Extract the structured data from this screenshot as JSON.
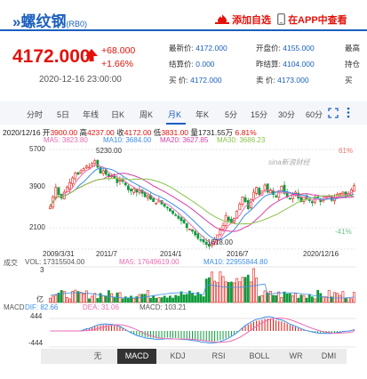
{
  "header": {
    "title": "»螺纹钢",
    "code": "(RB0)",
    "add_watchlist": "添加自选",
    "view_in_app": "在APP中查看"
  },
  "quote": {
    "price": "4172.000",
    "change": "+68.000",
    "change_pct": "+1.66%",
    "datetime": "2020-12-16 23:00:00",
    "latest_label": "最新价:",
    "latest_value": "4172.000",
    "open_label": "开盘价:",
    "open_value": "4155.000",
    "high_label": "最高",
    "settle_label": "结算价:",
    "settle_value": "0.000",
    "prev_settle_label": "昨结算:",
    "prev_settle_value": "4104.000",
    "hold_label": "持仓",
    "buy_label": "买  价:",
    "buy_value": "4172.000",
    "sell_label": "卖  价:",
    "sell_value": "4173.000",
    "extra_label": "买"
  },
  "tabs": [
    "分时",
    "5日",
    "年线",
    "日K",
    "周K",
    "月K",
    "年K",
    "5分",
    "15分",
    "30分",
    "60分"
  ],
  "active_tab": "月K",
  "chart_info": {
    "date": "2020/12/16",
    "open_label": "开",
    "open": "3900.00",
    "high_label": "高",
    "high": "4237.00",
    "close_label": "收",
    "close": "4172.00",
    "low_label": "低",
    "low": "3831.00",
    "vol_label": "量",
    "vol": "1731.55万",
    "pct": "6.81%",
    "ma5": "MA5: 3823.80",
    "ma10": "MA10: 3684.00",
    "ma20": "MA20: 3627.85",
    "ma30": "MA30: 3686.23"
  },
  "price_axis": {
    "top": "5700",
    "mid": "3900",
    "bottom": "2100",
    "right_top": "61%",
    "right_bottom": "-41%",
    "peak_label": "5230.00",
    "trough_label": "1618.00"
  },
  "date_axis": [
    "2009/3/31",
    "2011/7",
    "2014/1",
    "2016/7",
    "2020/12/16"
  ],
  "watermark": "sina新浪财经",
  "volume": {
    "label": "成交",
    "vol_text": "VOL: 17315504.00",
    "ma5_text": "MA5: 17649619.00",
    "ma10_text": "MA10: 22955844.80",
    "axis_mid": "3",
    "axis_unit": "亿"
  },
  "macd": {
    "label": "MACD",
    "dif": "DIF: 82.66",
    "dea": "DEA: 31.06",
    "macd": "MACD: 103.21",
    "top": "444",
    "bottom": "-444"
  },
  "indicator_buttons": [
    "无",
    "MACD",
    "KDJ",
    "RSI",
    "BOLL",
    "WR",
    "DMI"
  ],
  "active_indicator": "MACD",
  "nav": {
    "prev": "▲",
    "next": "▼"
  },
  "colors": {
    "up": "#e3120b",
    "down": "#109a3c",
    "accent": "#1b5fbf",
    "ma5": "#e96bb1",
    "ma10": "#3d8ee8",
    "ma20": "#d93fa6",
    "ma30": "#8bc34a"
  },
  "chart_data": {
    "type": "candlestick",
    "period": "monthly",
    "x_range": [
      "2009/3/31",
      "2020/12/16"
    ],
    "ylim": [
      1500,
      5700
    ],
    "close_series": [
      3300,
      3700,
      4100,
      3800,
      3650,
      3900,
      4100,
      4300,
      4500,
      4700,
      4650,
      4800,
      4900,
      5000,
      4950,
      5100,
      5230,
      4950,
      4700,
      4800,
      4650,
      4550,
      4600,
      4500,
      4300,
      4400,
      4350,
      4200,
      4000,
      3950,
      4050,
      3900,
      4000,
      3850,
      3700,
      3750,
      3600,
      3500,
      3450,
      3550,
      3400,
      3300,
      3250,
      3100,
      3000,
      2950,
      2800,
      2700,
      2600,
      2400,
      2350,
      2250,
      2100,
      1950,
      1900,
      1800,
      1700,
      1620,
      1750,
      1900,
      2100,
      2300,
      2500,
      2900,
      2700,
      2600,
      2800,
      3100,
      3400,
      3700,
      3500,
      3200,
      3600,
      3900,
      4100,
      3800,
      3950,
      4200,
      3900,
      4000,
      3800,
      3700,
      3950,
      4150,
      3850,
      3700,
      3600,
      3800,
      3900,
      3650,
      3500,
      3700,
      3600,
      3550,
      3450,
      3700,
      3650,
      3500,
      3600,
      3700,
      3750,
      3550,
      3650,
      3800,
      3850,
      3900,
      3750,
      3850,
      4000,
      4172
    ]
  }
}
